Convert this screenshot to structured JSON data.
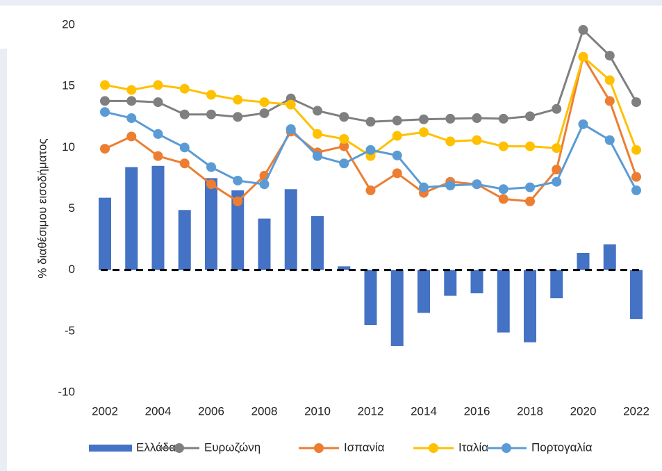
{
  "chart_data": {
    "type": "bar",
    "y_label": "% διαθέσιμου εισοδήματος",
    "categories": [
      "2002",
      null,
      "2004",
      null,
      "2006",
      null,
      "2008",
      null,
      "2010",
      null,
      "2012",
      null,
      "2014",
      null,
      "2016",
      null,
      "2018",
      null,
      "2020",
      null,
      "2022"
    ],
    "series": [
      {
        "name": "Ελλάδα",
        "type": "bar",
        "color": "#4472c4",
        "values": [
          5.9,
          8.4,
          8.5,
          4.9,
          7.5,
          6.5,
          4.2,
          6.6,
          4.4,
          0.3,
          -4.5,
          -6.2,
          -3.5,
          -2.1,
          -1.9,
          -5.1,
          -5.9,
          -2.3,
          1.4,
          2.1,
          -4.0
        ]
      },
      {
        "name": "Ευρωζώνη",
        "type": "line",
        "color": "#7f7f7f",
        "values": [
          13.8,
          13.8,
          13.7,
          12.7,
          12.7,
          12.5,
          12.8,
          14.0,
          13.0,
          12.5,
          12.1,
          12.2,
          12.3,
          12.35,
          12.4,
          12.35,
          12.55,
          13.15,
          19.6,
          17.5,
          13.7
        ]
      },
      {
        "name": "Ισπανία",
        "type": "line",
        "color": "#ed7d31",
        "values": [
          9.9,
          10.9,
          9.3,
          8.7,
          7.0,
          5.6,
          7.7,
          11.3,
          9.6,
          10.1,
          6.5,
          7.9,
          6.3,
          7.2,
          7.0,
          5.8,
          5.6,
          8.2,
          17.4,
          13.8,
          7.6
        ]
      },
      {
        "name": "Ιταλία",
        "type": "line",
        "color": "#ffc000",
        "values": [
          15.1,
          14.7,
          15.1,
          14.8,
          14.3,
          13.9,
          13.7,
          13.5,
          11.1,
          10.7,
          9.3,
          10.95,
          11.25,
          10.5,
          10.6,
          10.1,
          10.1,
          9.95,
          17.4,
          15.5,
          9.8
        ]
      },
      {
        "name": "Πορτογαλία",
        "type": "line",
        "color": "#5b9bd5",
        "values": [
          12.9,
          12.4,
          11.1,
          10.0,
          8.4,
          7.3,
          7.0,
          11.5,
          9.3,
          8.7,
          9.8,
          9.35,
          6.75,
          6.9,
          7.0,
          6.6,
          6.75,
          7.2,
          11.9,
          10.6,
          6.5
        ]
      }
    ],
    "ylim": [
      -10,
      20
    ],
    "yticks": [
      -10,
      -5,
      0,
      5,
      10,
      15,
      20
    ],
    "grid": false,
    "legend": "bottom"
  }
}
